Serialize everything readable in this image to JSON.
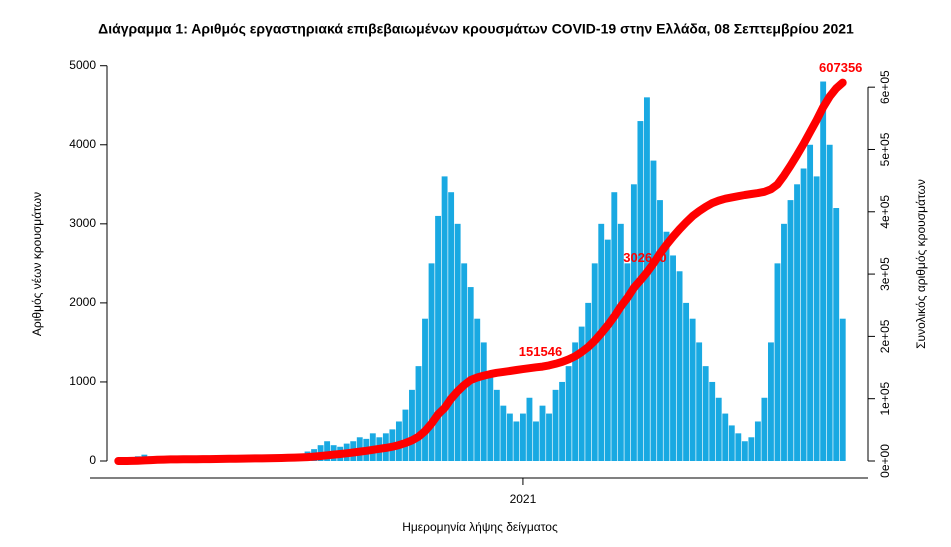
{
  "chart_data": {
    "type": "bar",
    "title": "Διάγραμμα 1: Αριθμός εργαστηριακά επιβεβαιωμένων κρουσμάτων COVID-19 στην Ελλάδα, 08 Σεπτεμβρίου 2021",
    "xlabel": "Ημερομηνία λήψης δείγματος",
    "ylabel": "Αριθμός νέων κρουσμάτων",
    "y2label": "Συνολικός αριθμός κρουσμάτων",
    "categories": [
      null,
      null,
      null,
      null,
      null,
      null,
      null,
      null,
      null,
      null,
      null,
      null,
      null,
      null,
      null,
      null,
      null,
      null,
      null,
      null,
      null,
      null,
      null,
      null,
      null,
      null,
      null,
      null,
      null,
      null,
      null,
      null,
      null,
      null,
      null,
      null,
      null,
      null,
      null,
      null,
      null,
      null,
      null,
      null,
      null,
      null,
      null,
      null,
      null,
      null,
      null,
      null,
      null,
      null,
      null,
      null,
      null,
      null,
      null,
      null,
      null,
      null,
      "2021",
      null,
      null,
      null,
      null,
      null,
      null,
      null,
      null,
      null,
      null,
      null,
      null,
      null,
      null,
      null,
      null,
      null,
      null,
      null,
      null,
      null,
      null,
      null,
      null,
      null,
      null,
      null,
      null,
      null,
      null,
      null,
      null,
      null,
      null,
      null,
      null,
      null,
      null,
      null,
      null,
      null,
      null,
      null,
      null,
      null,
      null,
      null,
      null,
      null
    ],
    "series": [
      {
        "color": "#19a9e2",
        "values": [
          5,
          10,
          30,
          60,
          80,
          60,
          40,
          20,
          15,
          20,
          15,
          10,
          10,
          15,
          20,
          20,
          25,
          30,
          40,
          30,
          20,
          20,
          25,
          30,
          35,
          40,
          50,
          60,
          80,
          120,
          150,
          200,
          250,
          200,
          180,
          220,
          250,
          300,
          280,
          350,
          300,
          350,
          400,
          500,
          650,
          900,
          1200,
          1800,
          2500,
          3100,
          3600,
          3400,
          3000,
          2500,
          2200,
          1800,
          1500,
          1100,
          900,
          700,
          600,
          500,
          600,
          800,
          500,
          700,
          600,
          900,
          1000,
          1200,
          1500,
          1700,
          2000,
          2500,
          3000,
          2800,
          3400,
          3000,
          2500,
          3500,
          4300,
          4600,
          3800,
          3300,
          2900,
          2600,
          2400,
          2000,
          1800,
          1500,
          1200,
          1000,
          800,
          600,
          450,
          350,
          250,
          300,
          500,
          800,
          1500,
          2500,
          3000,
          3300,
          3500,
          3700,
          4000,
          3600,
          4800,
          4000,
          3200,
          1800
        ]
      },
      {
        "color": "#ff0000",
        "axis": "y2",
        "values": [
          0,
          0,
          200,
          500,
          1000,
          1500,
          2000,
          2300,
          2500,
          2600,
          2700,
          2800,
          2900,
          3000,
          3100,
          3200,
          3300,
          3500,
          3700,
          3900,
          4000,
          4100,
          4200,
          4400,
          4600,
          4800,
          5100,
          5400,
          5800,
          6300,
          7000,
          8000,
          9200,
          10300,
          11300,
          12400,
          13600,
          15000,
          16400,
          18000,
          19500,
          21000,
          23000,
          25500,
          28800,
          33000,
          39000,
          48000,
          60000,
          75000,
          85000,
          100000,
          112000,
          122000,
          130000,
          134000,
          137000,
          139500,
          141500,
          143000,
          144500,
          146000,
          147500,
          149000,
          150300,
          151546,
          153500,
          156000,
          159000,
          163000,
          168000,
          175000,
          183000,
          193000,
          205000,
          218000,
          232000,
          248000,
          262000,
          278000,
          290000,
          302640,
          317000,
          333000,
          347000,
          360000,
          372000,
          383000,
          393000,
          401000,
          408000,
          414000,
          418000,
          421000,
          423000,
          425000,
          427000,
          428500,
          430000,
          432000,
          436000,
          444000,
          458000,
          474000,
          491000,
          509000,
          528000,
          547000,
          568000,
          585000,
          598000,
          607356
        ],
        "value_labels": [
          null,
          null,
          null,
          null,
          null,
          null,
          null,
          null,
          null,
          null,
          null,
          null,
          null,
          null,
          null,
          null,
          null,
          null,
          null,
          null,
          null,
          null,
          null,
          null,
          null,
          null,
          null,
          null,
          null,
          null,
          null,
          null,
          null,
          null,
          null,
          null,
          null,
          null,
          null,
          null,
          null,
          null,
          null,
          null,
          null,
          null,
          null,
          null,
          null,
          null,
          null,
          null,
          null,
          null,
          null,
          null,
          null,
          null,
          null,
          null,
          null,
          null,
          null,
          null,
          null,
          "151546",
          null,
          null,
          null,
          null,
          null,
          null,
          null,
          null,
          null,
          null,
          null,
          null,
          null,
          null,
          null,
          "302640",
          null,
          null,
          null,
          null,
          null,
          null,
          null,
          null,
          null,
          null,
          null,
          null,
          null,
          null,
          null,
          null,
          null,
          null,
          null,
          null,
          null,
          null,
          null,
          null,
          null,
          null,
          null,
          null,
          null,
          "607356"
        ]
      }
    ],
    "ylim": [
      -215,
      5300
    ],
    "yticks": [
      0,
      1000,
      2000,
      3000,
      4000,
      5000
    ],
    "y2lim": [
      -27300,
      672500
    ],
    "y2ticks": [
      {
        "value": 0,
        "label": "0e+00"
      },
      {
        "value": 100000,
        "label": "1e+05"
      },
      {
        "value": 200000,
        "label": "2e+05"
      },
      {
        "value": 300000,
        "label": "3e+05"
      },
      {
        "value": 400000,
        "label": "4e+05"
      },
      {
        "value": 500000,
        "label": "5e+05"
      },
      {
        "value": 600000,
        "label": "6e+05"
      }
    ]
  }
}
